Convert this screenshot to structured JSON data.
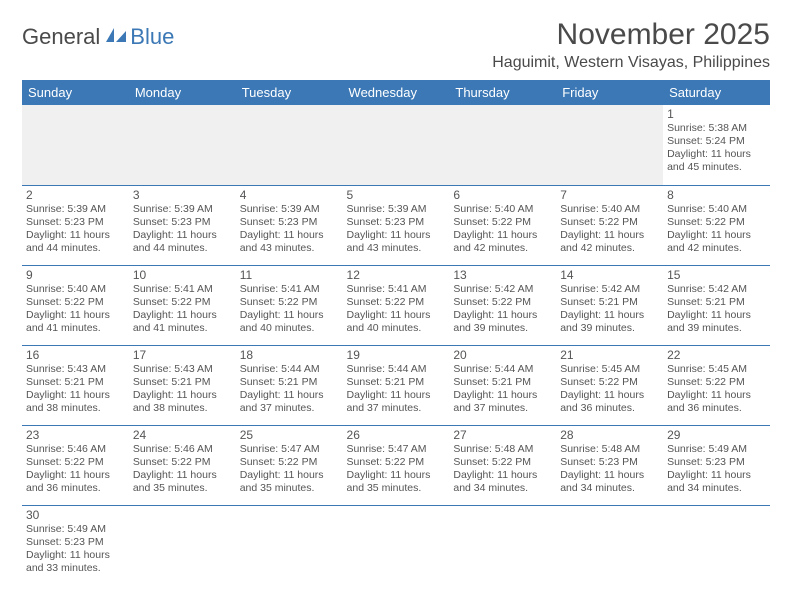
{
  "logo": {
    "text1": "General",
    "text2": "Blue"
  },
  "title": "November 2025",
  "location": "Haguimit, Western Visayas, Philippines",
  "colors": {
    "header_bg": "#3b78b5",
    "header_text": "#ffffff",
    "row_divider": "#3b78b5",
    "empty_bg": "#f0f0f0",
    "text": "#555555"
  },
  "day_headers": [
    "Sunday",
    "Monday",
    "Tuesday",
    "Wednesday",
    "Thursday",
    "Friday",
    "Saturday"
  ],
  "weeks": [
    [
      null,
      null,
      null,
      null,
      null,
      null,
      {
        "n": "1",
        "sr": "5:38 AM",
        "ss": "5:24 PM",
        "dl": "11 hours and 45 minutes."
      }
    ],
    [
      {
        "n": "2",
        "sr": "5:39 AM",
        "ss": "5:23 PM",
        "dl": "11 hours and 44 minutes."
      },
      {
        "n": "3",
        "sr": "5:39 AM",
        "ss": "5:23 PM",
        "dl": "11 hours and 44 minutes."
      },
      {
        "n": "4",
        "sr": "5:39 AM",
        "ss": "5:23 PM",
        "dl": "11 hours and 43 minutes."
      },
      {
        "n": "5",
        "sr": "5:39 AM",
        "ss": "5:23 PM",
        "dl": "11 hours and 43 minutes."
      },
      {
        "n": "6",
        "sr": "5:40 AM",
        "ss": "5:22 PM",
        "dl": "11 hours and 42 minutes."
      },
      {
        "n": "7",
        "sr": "5:40 AM",
        "ss": "5:22 PM",
        "dl": "11 hours and 42 minutes."
      },
      {
        "n": "8",
        "sr": "5:40 AM",
        "ss": "5:22 PM",
        "dl": "11 hours and 42 minutes."
      }
    ],
    [
      {
        "n": "9",
        "sr": "5:40 AM",
        "ss": "5:22 PM",
        "dl": "11 hours and 41 minutes."
      },
      {
        "n": "10",
        "sr": "5:41 AM",
        "ss": "5:22 PM",
        "dl": "11 hours and 41 minutes."
      },
      {
        "n": "11",
        "sr": "5:41 AM",
        "ss": "5:22 PM",
        "dl": "11 hours and 40 minutes."
      },
      {
        "n": "12",
        "sr": "5:41 AM",
        "ss": "5:22 PM",
        "dl": "11 hours and 40 minutes."
      },
      {
        "n": "13",
        "sr": "5:42 AM",
        "ss": "5:22 PM",
        "dl": "11 hours and 39 minutes."
      },
      {
        "n": "14",
        "sr": "5:42 AM",
        "ss": "5:21 PM",
        "dl": "11 hours and 39 minutes."
      },
      {
        "n": "15",
        "sr": "5:42 AM",
        "ss": "5:21 PM",
        "dl": "11 hours and 39 minutes."
      }
    ],
    [
      {
        "n": "16",
        "sr": "5:43 AM",
        "ss": "5:21 PM",
        "dl": "11 hours and 38 minutes."
      },
      {
        "n": "17",
        "sr": "5:43 AM",
        "ss": "5:21 PM",
        "dl": "11 hours and 38 minutes."
      },
      {
        "n": "18",
        "sr": "5:44 AM",
        "ss": "5:21 PM",
        "dl": "11 hours and 37 minutes."
      },
      {
        "n": "19",
        "sr": "5:44 AM",
        "ss": "5:21 PM",
        "dl": "11 hours and 37 minutes."
      },
      {
        "n": "20",
        "sr": "5:44 AM",
        "ss": "5:21 PM",
        "dl": "11 hours and 37 minutes."
      },
      {
        "n": "21",
        "sr": "5:45 AM",
        "ss": "5:22 PM",
        "dl": "11 hours and 36 minutes."
      },
      {
        "n": "22",
        "sr": "5:45 AM",
        "ss": "5:22 PM",
        "dl": "11 hours and 36 minutes."
      }
    ],
    [
      {
        "n": "23",
        "sr": "5:46 AM",
        "ss": "5:22 PM",
        "dl": "11 hours and 36 minutes."
      },
      {
        "n": "24",
        "sr": "5:46 AM",
        "ss": "5:22 PM",
        "dl": "11 hours and 35 minutes."
      },
      {
        "n": "25",
        "sr": "5:47 AM",
        "ss": "5:22 PM",
        "dl": "11 hours and 35 minutes."
      },
      {
        "n": "26",
        "sr": "5:47 AM",
        "ss": "5:22 PM",
        "dl": "11 hours and 35 minutes."
      },
      {
        "n": "27",
        "sr": "5:48 AM",
        "ss": "5:22 PM",
        "dl": "11 hours and 34 minutes."
      },
      {
        "n": "28",
        "sr": "5:48 AM",
        "ss": "5:23 PM",
        "dl": "11 hours and 34 minutes."
      },
      {
        "n": "29",
        "sr": "5:49 AM",
        "ss": "5:23 PM",
        "dl": "11 hours and 34 minutes."
      }
    ],
    [
      {
        "n": "30",
        "sr": "5:49 AM",
        "ss": "5:23 PM",
        "dl": "11 hours and 33 minutes."
      },
      null,
      null,
      null,
      null,
      null,
      null
    ]
  ],
  "labels": {
    "sunrise": "Sunrise:",
    "sunset": "Sunset:",
    "daylight": "Daylight:"
  }
}
